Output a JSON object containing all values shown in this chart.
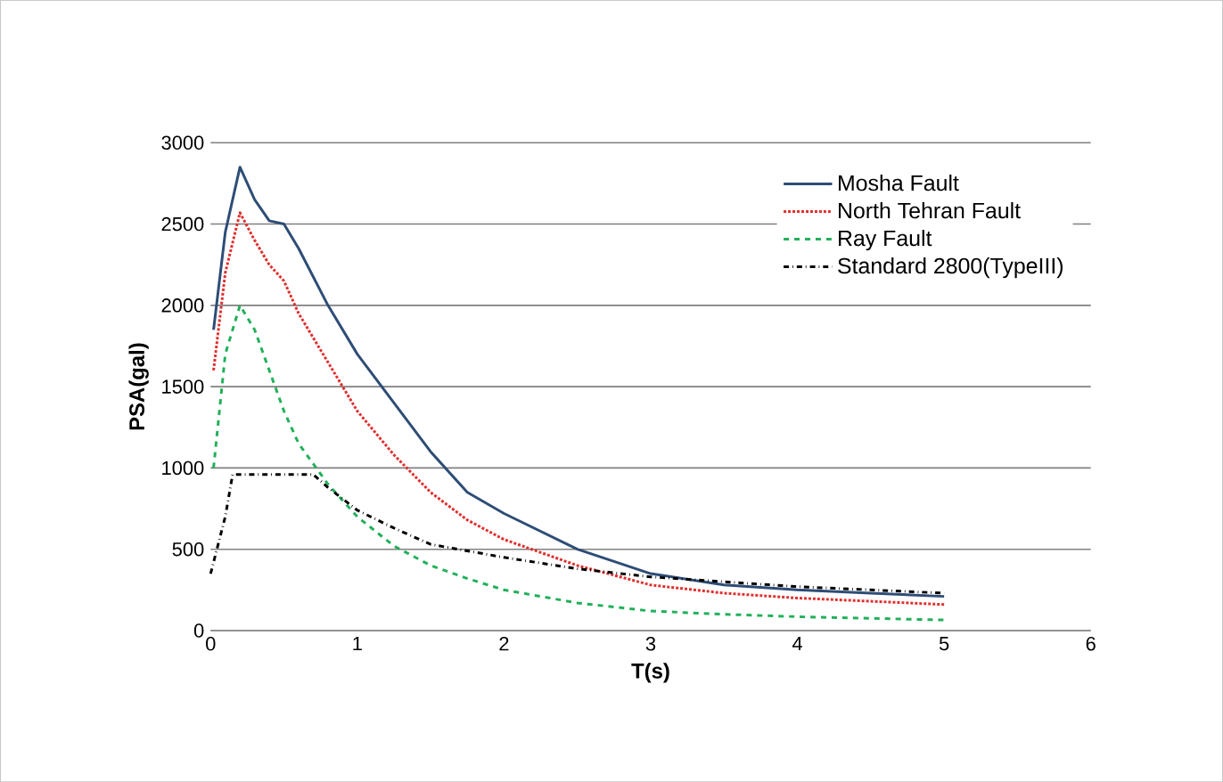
{
  "chart_data": {
    "type": "line",
    "xlabel": "T(s)",
    "ylabel": "PSA(gal)",
    "xlim": [
      0,
      6
    ],
    "ylim": [
      0,
      3000
    ],
    "xticks": [
      0,
      1,
      2,
      3,
      4,
      5,
      6
    ],
    "yticks": [
      0,
      500,
      1000,
      1500,
      2000,
      2500,
      3000
    ],
    "grid": "y",
    "legend": "top right",
    "series": [
      {
        "name": "Mosha Fault",
        "color": "#2e4d76",
        "line_style": "solid",
        "x": [
          0.02,
          0.1,
          0.2,
          0.3,
          0.4,
          0.5,
          0.6,
          0.8,
          1.0,
          1.25,
          1.5,
          1.75,
          2.0,
          2.5,
          3.0,
          3.5,
          4.0,
          4.5,
          5.0
        ],
        "values": [
          1850,
          2450,
          2850,
          2650,
          2520,
          2500,
          2350,
          2000,
          1700,
          1400,
          1100,
          850,
          720,
          500,
          350,
          280,
          250,
          230,
          210
        ]
      },
      {
        "name": "North Tehran Fault",
        "color": "#e03030",
        "line_style": "dotted",
        "x": [
          0.02,
          0.1,
          0.2,
          0.3,
          0.4,
          0.5,
          0.6,
          0.8,
          1.0,
          1.25,
          1.5,
          1.75,
          2.0,
          2.5,
          3.0,
          3.5,
          4.0,
          4.5,
          5.0
        ],
        "values": [
          1600,
          2200,
          2570,
          2400,
          2250,
          2150,
          1950,
          1650,
          1350,
          1080,
          850,
          680,
          560,
          400,
          280,
          230,
          200,
          180,
          160
        ]
      },
      {
        "name": "Ray Fault",
        "color": "#22b05a",
        "line_style": "dashed",
        "x": [
          0.02,
          0.1,
          0.2,
          0.3,
          0.4,
          0.5,
          0.6,
          0.8,
          1.0,
          1.25,
          1.5,
          1.75,
          2.0,
          2.5,
          3.0,
          3.5,
          4.0,
          4.5,
          5.0
        ],
        "values": [
          1000,
          1700,
          2000,
          1850,
          1600,
          1350,
          1150,
          900,
          700,
          520,
          400,
          320,
          250,
          170,
          120,
          100,
          85,
          75,
          65
        ]
      },
      {
        "name": "Standard 2800(TypeIII)",
        "color": "#000000",
        "line_style": "dashdot",
        "x": [
          0,
          0.1,
          0.15,
          0.7,
          0.8,
          1.0,
          1.25,
          1.5,
          2.0,
          2.5,
          3.0,
          3.5,
          4.0,
          4.5,
          5.0
        ],
        "values": [
          350,
          700,
          960,
          960,
          880,
          740,
          630,
          530,
          450,
          380,
          330,
          300,
          270,
          250,
          230
        ]
      }
    ]
  }
}
